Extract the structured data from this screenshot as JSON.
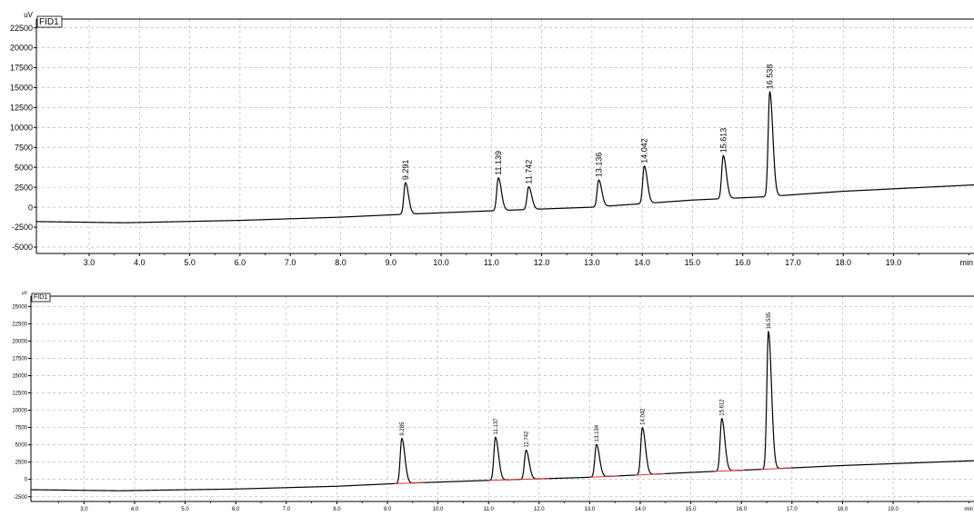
{
  "chart_data": [
    {
      "type": "line",
      "title": "",
      "legend": "FID1",
      "ylabel": "uV",
      "xlabel": "min",
      "xlim": [
        1.95,
        20.6
      ],
      "ylim": [
        -5800,
        23600
      ],
      "yticks": [
        -5000,
        -2500,
        0,
        2500,
        5000,
        7500,
        10000,
        12500,
        15000,
        17500,
        20000,
        22500
      ],
      "ytick_labels": [
        "-5000",
        "-2500",
        "0",
        "2500",
        "5000",
        "7500",
        "10000",
        "12500",
        "15000",
        "17500",
        "20000",
        "22500"
      ],
      "xticks": [
        3,
        4,
        5,
        6,
        7,
        8,
        9,
        10,
        11,
        12,
        13,
        14,
        15,
        16,
        17,
        18,
        19
      ],
      "xtick_labels": [
        "3.0",
        "4.0",
        "5.0",
        "6.0",
        "7.0",
        "8.0",
        "9.0",
        "10.0",
        "11.0",
        "12.0",
        "13.0",
        "14.0",
        "15.0",
        "16.0",
        "17.0",
        "18.0",
        "19.0"
      ],
      "grid": true,
      "baseline": [
        [
          1.95,
          -1800
        ],
        [
          3.7,
          -1950
        ],
        [
          6.0,
          -1650
        ],
        [
          8.0,
          -1250
        ],
        [
          9.2,
          -900
        ],
        [
          11.0,
          -450
        ],
        [
          13.0,
          0
        ],
        [
          14.0,
          450
        ],
        [
          15.0,
          900
        ],
        [
          16.4,
          1300
        ],
        [
          18.0,
          2000
        ],
        [
          20.6,
          2800
        ]
      ],
      "peaks": [
        {
          "label": "9.291",
          "rt": 9.291,
          "height": 3950
        },
        {
          "label": "11.139",
          "rt": 11.139,
          "height": 4100
        },
        {
          "label": "11.742",
          "rt": 11.742,
          "height": 2850
        },
        {
          "label": "13.136",
          "rt": 13.136,
          "height": 3350
        },
        {
          "label": "14.042",
          "rt": 14.042,
          "height": 4700
        },
        {
          "label": "15.613",
          "rt": 15.613,
          "height": 5400
        },
        {
          "label": "16.538",
          "rt": 16.538,
          "height": 13100
        }
      ]
    },
    {
      "type": "line",
      "title": "",
      "legend": "FID1",
      "ylabel": "uV",
      "xlabel": "min",
      "xlim": [
        1.95,
        20.6
      ],
      "ylim": [
        -3200,
        26500
      ],
      "yticks": [
        -2500,
        0,
        2500,
        5000,
        7500,
        10000,
        12500,
        15000,
        17500,
        20000,
        22500,
        25000
      ],
      "ytick_labels": [
        "-2500",
        "0",
        "2500",
        "5000",
        "7500",
        "10000",
        "12500",
        "15000",
        "17500",
        "20000",
        "22500",
        "25000"
      ],
      "xticks": [
        3,
        4,
        5,
        6,
        7,
        8,
        9,
        10,
        11,
        12,
        13,
        14,
        15,
        16,
        17,
        18,
        19
      ],
      "xtick_labels": [
        "3.0",
        "4.0",
        "5.0",
        "6.0",
        "7.0",
        "8.0",
        "9.0",
        "10.0",
        "11.0",
        "12.0",
        "13.0",
        "14.0",
        "15.0",
        "16.0",
        "17.0",
        "18.0",
        "19.0"
      ],
      "grid": true,
      "baseline": [
        [
          1.95,
          -1500
        ],
        [
          3.7,
          -1650
        ],
        [
          6.0,
          -1400
        ],
        [
          8.0,
          -1000
        ],
        [
          9.2,
          -600
        ],
        [
          11.0,
          -150
        ],
        [
          13.0,
          300
        ],
        [
          14.0,
          650
        ],
        [
          15.0,
          1000
        ],
        [
          16.4,
          1450
        ],
        [
          18.0,
          2000
        ],
        [
          20.6,
          2700
        ]
      ],
      "peaks": [
        {
          "label": "9.285",
          "rt": 9.285,
          "height": 6500
        },
        {
          "label": "11.137",
          "rt": 11.137,
          "height": 6200
        },
        {
          "label": "11.742",
          "rt": 11.742,
          "height": 4200
        },
        {
          "label": "13.134",
          "rt": 13.134,
          "height": 4700
        },
        {
          "label": "14.042",
          "rt": 14.042,
          "height": 6800
        },
        {
          "label": "15.612",
          "rt": 15.612,
          "height": 7600
        },
        {
          "label": "16.535",
          "rt": 16.535,
          "height": 19850
        }
      ],
      "integration_baseline_color": "#e03030"
    }
  ]
}
